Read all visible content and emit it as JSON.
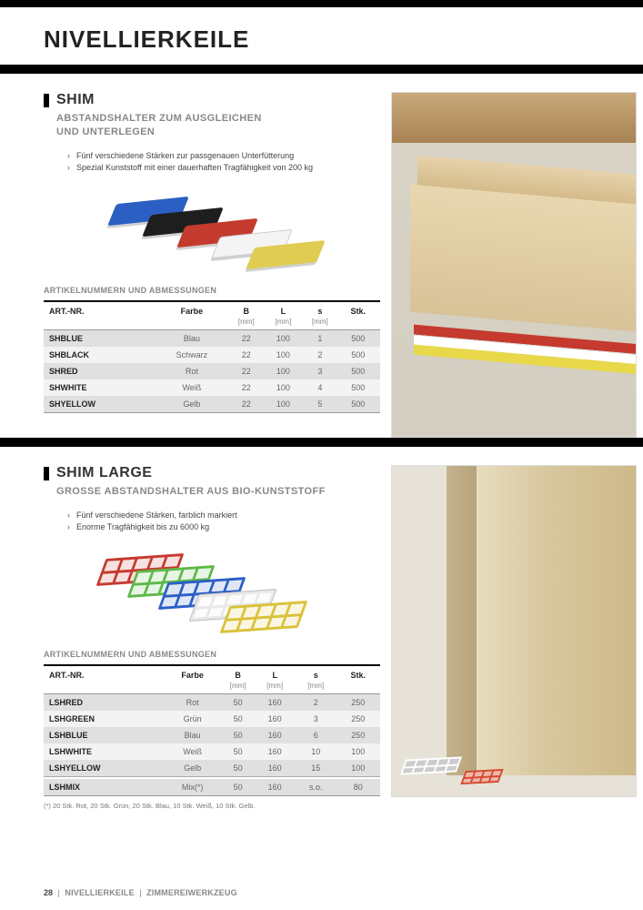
{
  "page_title": "NIVELLIERKEILE",
  "footer": {
    "page_number": "28",
    "crumb1": "NIVELLIERKEILE",
    "crumb2": "ZIMMEREIWERKZEUG"
  },
  "section1": {
    "heading": "SHIM",
    "subheading": "ABSTANDSHALTER ZUM AUSGLEICHEN\nUND UNTERLEGEN",
    "bullets": [
      "Fünf verschiedene Stärken zur passgenauen Unterfütterung",
      "Spezial Kunststoff mit einer dauerhaften Tragfähigkeit von 200 kg"
    ],
    "illus_colors": [
      "#2b5fc4",
      "#1e1e1e",
      "#c53a2e",
      "#f4f4f4",
      "#e0cc52"
    ],
    "table_caption": "ARTIKELNUMMERN UND ABMESSUNGEN",
    "columns": [
      "ART.-NR.",
      "Farbe",
      "B",
      "L",
      "s",
      "Stk."
    ],
    "units": [
      "",
      "",
      "[mm]",
      "[mm]",
      "[mm]",
      ""
    ],
    "rows": [
      [
        "SHBLUE",
        "Blau",
        "22",
        "100",
        "1",
        "500"
      ],
      [
        "SHBLACK",
        "Schwarz",
        "22",
        "100",
        "2",
        "500"
      ],
      [
        "SHRED",
        "Rot",
        "22",
        "100",
        "3",
        "500"
      ],
      [
        "SHWHITE",
        "Weiß",
        "22",
        "100",
        "4",
        "500"
      ],
      [
        "SHYELLOW",
        "Gelb",
        "22",
        "100",
        "5",
        "500"
      ]
    ],
    "side_shim_colors": [
      "#c53a2e",
      "#ffffff",
      "#e8d84a"
    ]
  },
  "section2": {
    "heading": "SHIM LARGE",
    "subheading": "GROSSE ABSTANDSHALTER AUS BIO-KUNSTSTOFF",
    "bullets": [
      "Fünf verschiedene Stärken, farblich markiert",
      "Enorme Tragfähigkeit bis zu 6000 kg"
    ],
    "illus_colors": [
      "#c53a2e",
      "#5fb84a",
      "#2b5fc4",
      "#e8e8e8",
      "#d9c23a"
    ],
    "table_caption": "ARTIKELNUMMERN UND ABMESSUNGEN",
    "columns": [
      "ART.-NR.",
      "Farbe",
      "B",
      "L",
      "s",
      "Stk."
    ],
    "units": [
      "",
      "",
      "[mm]",
      "[mm]",
      "[mm]",
      ""
    ],
    "rows": [
      [
        "LSHRED",
        "Rot",
        "50",
        "160",
        "2",
        "250"
      ],
      [
        "LSHGREEN",
        "Grün",
        "50",
        "160",
        "3",
        "250"
      ],
      [
        "LSHBLUE",
        "Blau",
        "50",
        "160",
        "6",
        "250"
      ],
      [
        "LSHWHITE",
        "Weiß",
        "50",
        "160",
        "10",
        "100"
      ],
      [
        "LSHYELLOW",
        "Gelb",
        "50",
        "160",
        "15",
        "100"
      ]
    ],
    "mix_row": [
      "LSHMIX",
      "Mix(*)",
      "50",
      "160",
      "s.o.",
      "80"
    ],
    "footnote": "(*) 20 Stk. Rot, 20 Stk. Grün, 20 Stk. Blau, 10 Stk. Weiß, 10 Stk. Gelb."
  }
}
